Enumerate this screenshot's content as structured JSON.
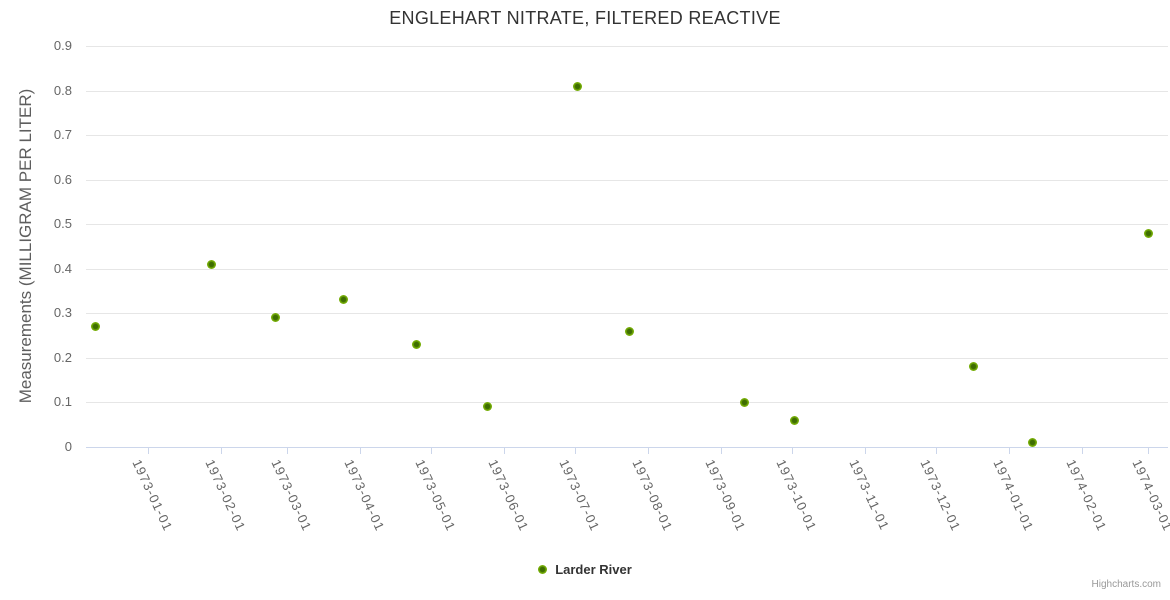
{
  "chart_data": {
    "type": "scatter",
    "title": "ENGLEHART NITRATE, FILTERED REACTIVE",
    "xlabel": "",
    "ylabel": "Measurements (MILLIGRAM PER LITER)",
    "ylim": [
      0,
      0.9
    ],
    "y_tick_labels": [
      "0",
      "0.1",
      "0.2",
      "0.3",
      "0.4",
      "0.5",
      "0.6",
      "0.7",
      "0.8",
      "0.9"
    ],
    "x_tick_labels": [
      "1973-01-01",
      "1973-02-01",
      "1973-03-01",
      "1973-04-01",
      "1973-05-01",
      "1973-06-01",
      "1973-07-01",
      "1973-08-01",
      "1973-09-01",
      "1973-10-01",
      "1973-11-01",
      "1973-12-01",
      "1974-01-01",
      "1974-02-01",
      "1974-03-01"
    ],
    "grid": "horizontal-only",
    "legend_position": "bottom-center",
    "series": [
      {
        "name": "Larder River",
        "points": [
          {
            "date": "1972-12-10",
            "value": 0.27
          },
          {
            "date": "1973-01-28",
            "value": 0.41
          },
          {
            "date": "1973-02-24",
            "value": 0.29
          },
          {
            "date": "1973-03-25",
            "value": 0.33
          },
          {
            "date": "1973-04-25",
            "value": 0.23
          },
          {
            "date": "1973-05-25",
            "value": 0.09
          },
          {
            "date": "1973-07-02",
            "value": 0.81
          },
          {
            "date": "1973-07-24",
            "value": 0.26
          },
          {
            "date": "1973-09-11",
            "value": 0.1
          },
          {
            "date": "1973-10-02",
            "value": 0.06
          },
          {
            "date": "1973-12-17",
            "value": 0.18
          },
          {
            "date": "1974-01-11",
            "value": 0.01
          },
          {
            "date": "1974-03-01",
            "value": 0.48
          }
        ]
      }
    ]
  },
  "colors": {
    "marker_ring": "#7cb405",
    "marker_center": "#3e6d02",
    "gridline": "#e6e6e6",
    "axis_line": "#ccd6eb",
    "tick_label": "#666666",
    "title": "#333333",
    "watermark": "#999999"
  },
  "branding": {
    "label": "Highcharts.com"
  }
}
